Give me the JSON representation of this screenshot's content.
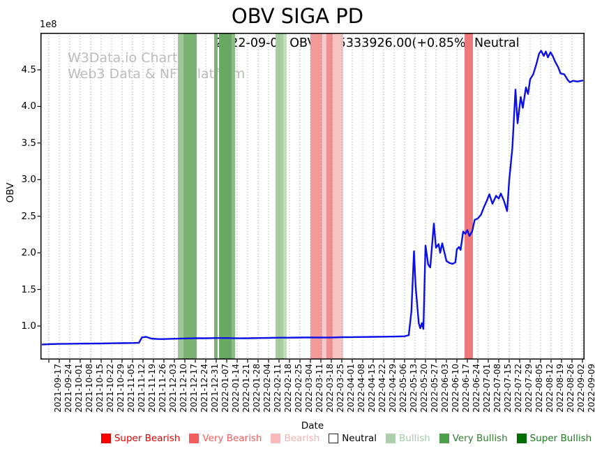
{
  "title": "OBV SIGA PD",
  "subtitle": "2022-09-09 OBV: 435333926.00(+0.85%) Neutral",
  "watermark": {
    "line1": "W3Data.io Chart",
    "line2": "Web3 Data & NFT Platform",
    "color": "#bdbdbd"
  },
  "chart_data": {
    "type": "line",
    "title": "OBV SIGA PD",
    "xlabel": "Date",
    "ylabel": "OBV",
    "y_offset_label": "1e8",
    "grid": "vertical-dotted",
    "grid_color": "#999999",
    "line_color": "#0a10e6",
    "ylim_1e8": [
      0.54,
      5.0
    ],
    "y_ticks_1e8": [
      1.0,
      1.5,
      2.0,
      2.5,
      3.0,
      3.5,
      4.0,
      4.5
    ],
    "x_tick_labels": [
      "2021-09-17",
      "2021-09-24",
      "2021-10-01",
      "2021-10-08",
      "2021-10-15",
      "2021-10-22",
      "2021-10-29",
      "2021-11-05",
      "2021-11-12",
      "2021-11-19",
      "2021-11-26",
      "2021-12-03",
      "2021-12-10",
      "2021-12-17",
      "2021-12-24",
      "2021-12-31",
      "2022-01-07",
      "2022-01-14",
      "2022-01-21",
      "2022-01-28",
      "2022-02-04",
      "2022-02-11",
      "2022-02-18",
      "2022-02-25",
      "2022-03-04",
      "2022-03-11",
      "2022-03-18",
      "2022-03-25",
      "2022-04-01",
      "2022-04-08",
      "2022-04-15",
      "2022-04-22",
      "2022-04-29",
      "2022-05-06",
      "2022-05-13",
      "2022-05-20",
      "2022-05-27",
      "2022-06-03",
      "2022-06-10",
      "2022-06-17",
      "2022-06-24",
      "2022-07-01",
      "2022-07-08",
      "2022-07-15",
      "2022-07-22",
      "2022-07-29",
      "2022-08-05",
      "2022-08-12",
      "2022-08-19",
      "2022-08-26",
      "2022-09-02",
      "2022-09-09"
    ],
    "series": [
      {
        "name": "OBV",
        "color": "#0a10e6",
        "points_week_index_vs_1e8": [
          [
            -0.6,
            0.748
          ],
          [
            0,
            0.752
          ],
          [
            1,
            0.756
          ],
          [
            2,
            0.758
          ],
          [
            3,
            0.76
          ],
          [
            4,
            0.761
          ],
          [
            5,
            0.762
          ],
          [
            6,
            0.764
          ],
          [
            7,
            0.766
          ],
          [
            8,
            0.768
          ],
          [
            8.6,
            0.77
          ],
          [
            8.9,
            0.845
          ],
          [
            9.3,
            0.852
          ],
          [
            9.8,
            0.828
          ],
          [
            10.5,
            0.822
          ],
          [
            11,
            0.822
          ],
          [
            12,
            0.826
          ],
          [
            13,
            0.83
          ],
          [
            14,
            0.833
          ],
          [
            15,
            0.833
          ],
          [
            16,
            0.836
          ],
          [
            17,
            0.836
          ],
          [
            18,
            0.832
          ],
          [
            19,
            0.833
          ],
          [
            20,
            0.836
          ],
          [
            21,
            0.838
          ],
          [
            22,
            0.841
          ],
          [
            23,
            0.841
          ],
          [
            24,
            0.843
          ],
          [
            25,
            0.845
          ],
          [
            26,
            0.843
          ],
          [
            27,
            0.844
          ],
          [
            28,
            0.847
          ],
          [
            29,
            0.848
          ],
          [
            30,
            0.85
          ],
          [
            31,
            0.852
          ],
          [
            32,
            0.854
          ],
          [
            33,
            0.856
          ],
          [
            34,
            0.86
          ],
          [
            34.4,
            0.875
          ],
          [
            34.65,
            1.2
          ],
          [
            34.9,
            2.02
          ],
          [
            35.05,
            1.55
          ],
          [
            35.35,
            1.04
          ],
          [
            35.5,
            0.97
          ],
          [
            35.65,
            1.04
          ],
          [
            35.8,
            0.96
          ],
          [
            36.0,
            2.1
          ],
          [
            36.25,
            1.84
          ],
          [
            36.45,
            1.8
          ],
          [
            36.8,
            2.4
          ],
          [
            37.0,
            2.07
          ],
          [
            37.25,
            2.12
          ],
          [
            37.4,
            2.0
          ],
          [
            37.6,
            2.13
          ],
          [
            38.0,
            1.89
          ],
          [
            38.3,
            1.86
          ],
          [
            38.6,
            1.85
          ],
          [
            38.85,
            1.87
          ],
          [
            39.0,
            2.05
          ],
          [
            39.2,
            2.08
          ],
          [
            39.35,
            2.04
          ],
          [
            39.6,
            2.29
          ],
          [
            39.8,
            2.26
          ],
          [
            40.0,
            2.31
          ],
          [
            40.2,
            2.23
          ],
          [
            40.45,
            2.29
          ],
          [
            40.7,
            2.45
          ],
          [
            41.0,
            2.47
          ],
          [
            41.3,
            2.52
          ],
          [
            41.6,
            2.63
          ],
          [
            41.85,
            2.71
          ],
          [
            42.1,
            2.8
          ],
          [
            42.4,
            2.67
          ],
          [
            42.75,
            2.78
          ],
          [
            43.0,
            2.74
          ],
          [
            43.2,
            2.81
          ],
          [
            43.5,
            2.71
          ],
          [
            43.8,
            2.57
          ],
          [
            44.0,
            2.99
          ],
          [
            44.3,
            3.43
          ],
          [
            44.6,
            4.23
          ],
          [
            44.8,
            3.77
          ],
          [
            45.1,
            4.13
          ],
          [
            45.3,
            3.98
          ],
          [
            45.6,
            4.26
          ],
          [
            45.8,
            4.17
          ],
          [
            46.0,
            4.37
          ],
          [
            46.3,
            4.44
          ],
          [
            46.6,
            4.58
          ],
          [
            46.85,
            4.72
          ],
          [
            47.05,
            4.76
          ],
          [
            47.3,
            4.69
          ],
          [
            47.5,
            4.75
          ],
          [
            47.7,
            4.67
          ],
          [
            47.95,
            4.74
          ],
          [
            48.15,
            4.69
          ],
          [
            48.4,
            4.61
          ],
          [
            48.7,
            4.53
          ],
          [
            48.9,
            4.45
          ],
          [
            49.25,
            4.44
          ],
          [
            49.6,
            4.36
          ],
          [
            49.8,
            4.33
          ],
          [
            50.1,
            4.35
          ],
          [
            50.5,
            4.34
          ],
          [
            51.0,
            4.353
          ]
        ]
      }
    ],
    "signal_bands": [
      {
        "from": 12.33,
        "to": 12.87,
        "color": "#9fc898",
        "label": "Very Bullish"
      },
      {
        "from": 12.87,
        "to": 14.13,
        "color": "#79b372",
        "label": "Very Bullish"
      },
      {
        "from": 15.8,
        "to": 16.13,
        "color": "#79b372",
        "label": "Very Bullish"
      },
      {
        "from": 16.27,
        "to": 17.47,
        "color": "#68a862",
        "label": "Very Bullish"
      },
      {
        "from": 17.47,
        "to": 17.8,
        "color": "#8abd83",
        "label": "Very Bullish"
      },
      {
        "from": 21.67,
        "to": 22.4,
        "color": "#a8cf9f",
        "label": "Bullish"
      },
      {
        "from": 22.4,
        "to": 22.73,
        "color": "#c2ddba",
        "label": "Bullish"
      },
      {
        "from": 25.0,
        "to": 26.13,
        "color": "#f29a9a",
        "label": "Very Bearish"
      },
      {
        "from": 26.13,
        "to": 26.53,
        "color": "#f8caca",
        "label": "Bearish"
      },
      {
        "from": 26.53,
        "to": 27.13,
        "color": "#f09090",
        "label": "Very Bearish"
      },
      {
        "from": 27.13,
        "to": 28.13,
        "color": "#f6c3c3",
        "label": "Bearish"
      },
      {
        "from": 39.73,
        "to": 40.53,
        "color": "#f07878",
        "label": "Very Bearish"
      }
    ]
  },
  "legend": {
    "items": [
      {
        "label": "Super Bearish",
        "swatch": "#ff0000",
        "border": "#d40000",
        "text_color": "#e60000"
      },
      {
        "label": "Very Bearish",
        "swatch": "#f25c5c",
        "border": "#f25c5c",
        "text_color": "#f25c5c"
      },
      {
        "label": "Bearish",
        "swatch": "#f7baba",
        "border": "#f7baba",
        "text_color": "#f3b0b0"
      },
      {
        "label": "Neutral",
        "swatch": "#ffffff",
        "border": "#222222",
        "text_color": "#000000"
      },
      {
        "label": "Bullish",
        "swatch": "#abd0ab",
        "border": "#abd0ab",
        "text_color": "#a5cba5"
      },
      {
        "label": "Very Bullish",
        "swatch": "#4e9e4e",
        "border": "#4e9e4e",
        "text_color": "#337a33"
      },
      {
        "label": "Super Bullish",
        "swatch": "#006e00",
        "border": "#006e00",
        "text_color": "#1b7a1b"
      }
    ]
  }
}
